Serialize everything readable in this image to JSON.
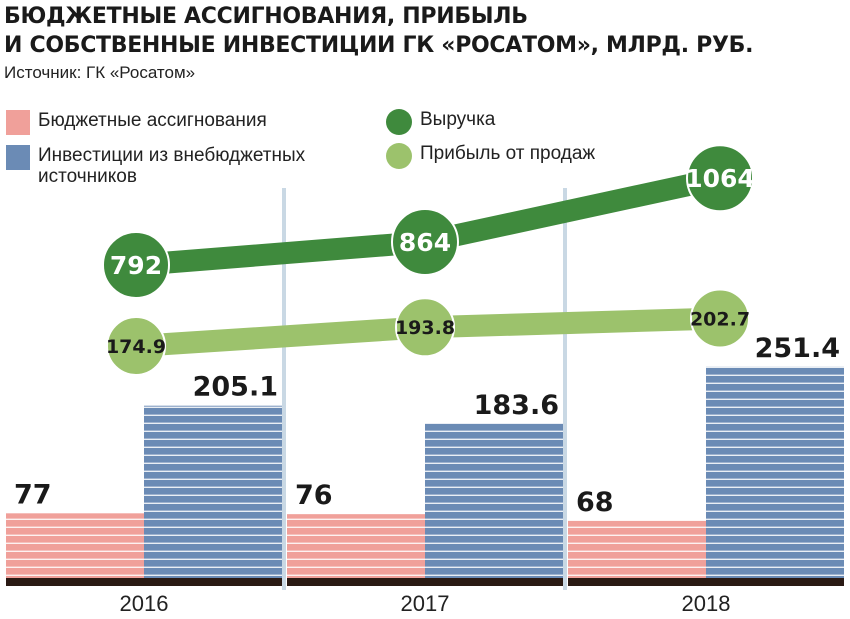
{
  "header": {
    "title_line1": "БЮДЖЕТНЫЕ АССИГНОВАНИЯ, ПРИБЫЛЬ",
    "title_line2": "И СОБСТВЕННЫЕ ИНВЕСТИЦИИ ГК «РОСАТОМ», МЛРД. РУБ.",
    "source": "Источник: ГК «Росатом»"
  },
  "legend": {
    "budget": "Бюджетные ассигнования",
    "invest_line1": "Инвестиции из внебюджетных",
    "invest_line2": "источников",
    "revenue": "Выручка",
    "profit": "Прибыль от продаж"
  },
  "colors": {
    "budget": "#f0a09a",
    "invest": "#6b8bb5",
    "revenue": "#3f8a3d",
    "profit": "#9cc26c",
    "baseline": "#2a1a14",
    "divider": "#c9d8e4"
  },
  "chart_data": {
    "type": "bar+line",
    "categories": [
      "2016",
      "2017",
      "2018"
    ],
    "series": [
      {
        "name": "Бюджетные ассигнования",
        "kind": "bar",
        "values": [
          77,
          76,
          68
        ],
        "labels": [
          "77",
          "76",
          "68"
        ]
      },
      {
        "name": "Инвестиции из внебюджетных источников",
        "kind": "bar",
        "values": [
          205.1,
          183.6,
          251.4
        ],
        "labels": [
          "205.1",
          "183.6",
          "251.4"
        ]
      },
      {
        "name": "Выручка",
        "kind": "line",
        "values": [
          792,
          864,
          1064
        ],
        "labels": [
          "792",
          "864",
          "1064"
        ]
      },
      {
        "name": "Прибыль от продаж",
        "kind": "line",
        "values": [
          174.9,
          193.8,
          202.7
        ],
        "labels": [
          "174.9",
          "193.8",
          "202.7"
        ]
      }
    ]
  }
}
